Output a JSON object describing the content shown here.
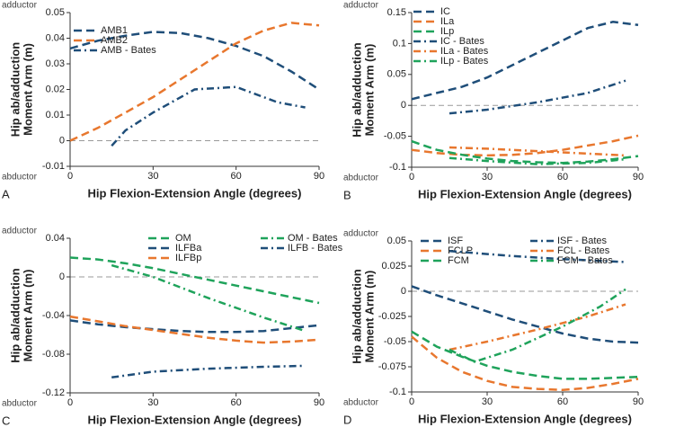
{
  "chart_data": [
    {
      "type": "line",
      "panel": "A",
      "adductor": "adductor",
      "abductor": "abductor",
      "ylabel": [
        "Hip ab/adduction",
        "Moment Arm (m)"
      ],
      "xlabel": "Hip Flexion-Extension Angle (degrees)",
      "xlim": [
        0,
        90
      ],
      "xticks": [
        0,
        30,
        60,
        90
      ],
      "ylim": [
        -0.01,
        0.05
      ],
      "yticks": [
        -0.01,
        0,
        0.01,
        0.02,
        0.03,
        0.04,
        0.05
      ],
      "legend_columns": 1,
      "series": [
        {
          "name": "AMB1",
          "color": "#1f4e79",
          "dash": "dashed",
          "x": [
            0,
            10,
            20,
            30,
            40,
            50,
            60,
            70,
            80,
            90
          ],
          "values": [
            0.036,
            0.039,
            0.041,
            0.0425,
            0.042,
            0.04,
            0.037,
            0.033,
            0.027,
            0.02
          ]
        },
        {
          "name": "AMB2",
          "color": "#e8772e",
          "dash": "dashed",
          "x": [
            0,
            10,
            20,
            30,
            40,
            50,
            60,
            70,
            80,
            90
          ],
          "values": [
            0,
            0.005,
            0.011,
            0.017,
            0.024,
            0.031,
            0.038,
            0.043,
            0.046,
            0.045
          ]
        },
        {
          "name": "AMB - Bates",
          "color": "#1f4e79",
          "dash": "dashdot",
          "x": [
            15,
            20,
            30,
            45,
            60,
            75,
            85
          ],
          "values": [
            -0.002,
            0.004,
            0.011,
            0.02,
            0.021,
            0.015,
            0.013
          ]
        }
      ]
    },
    {
      "type": "line",
      "panel": "B",
      "adductor": "adductor",
      "abductor": "abductor",
      "ylabel": [
        "Hip ab/adduction",
        "Moment Arm (m)"
      ],
      "xlabel": "Hip Flexion-Extension Angle (degrees)",
      "xlim": [
        0,
        90
      ],
      "xticks": [
        0,
        30,
        60,
        90
      ],
      "ylim": [
        -0.1,
        0.15
      ],
      "yticks": [
        -0.1,
        -0.05,
        0,
        0.05,
        0.1,
        0.15
      ],
      "legend_columns": 1,
      "series": [
        {
          "name": "IC",
          "color": "#1f4e79",
          "dash": "dashed",
          "x": [
            0,
            10,
            20,
            30,
            40,
            50,
            60,
            70,
            80,
            90
          ],
          "values": [
            0.01,
            0.02,
            0.03,
            0.045,
            0.065,
            0.085,
            0.105,
            0.125,
            0.135,
            0.13
          ]
        },
        {
          "name": "ILa",
          "color": "#e8772e",
          "dash": "dashed",
          "x": [
            0,
            10,
            20,
            30,
            40,
            50,
            60,
            70,
            80,
            90
          ],
          "values": [
            -0.072,
            -0.077,
            -0.08,
            -0.081,
            -0.08,
            -0.077,
            -0.072,
            -0.065,
            -0.058,
            -0.049
          ]
        },
        {
          "name": "ILp",
          "color": "#1fa35b",
          "dash": "dashed",
          "x": [
            0,
            10,
            20,
            30,
            40,
            50,
            60,
            70,
            80,
            90
          ],
          "values": [
            -0.058,
            -0.072,
            -0.08,
            -0.086,
            -0.09,
            -0.092,
            -0.093,
            -0.091,
            -0.087,
            -0.082
          ]
        },
        {
          "name": "IC - Bates",
          "color": "#1f4e79",
          "dash": "dashdot",
          "x": [
            15,
            30,
            50,
            70,
            85
          ],
          "values": [
            -0.013,
            -0.007,
            0.005,
            0.02,
            0.04
          ]
        },
        {
          "name": "ILa - Bates",
          "color": "#e8772e",
          "dash": "dashdot",
          "x": [
            15,
            30,
            50,
            70,
            85
          ],
          "values": [
            -0.068,
            -0.07,
            -0.074,
            -0.078,
            -0.081
          ]
        },
        {
          "name": "ILp - Bates",
          "color": "#1fa35b",
          "dash": "dashdot",
          "x": [
            15,
            30,
            50,
            70,
            85
          ],
          "values": [
            -0.085,
            -0.09,
            -0.095,
            -0.093,
            -0.087
          ]
        }
      ]
    },
    {
      "type": "line",
      "panel": "C",
      "adductor": "adductor",
      "abductor": "abductor",
      "ylabel": [
        "Hip ab/adduction",
        "Moment Arm (m)"
      ],
      "xlabel": "Hip Flexion-Extension Angle (degrees)",
      "xlim": [
        0,
        90
      ],
      "xticks": [
        0,
        30,
        60,
        90
      ],
      "ylim": [
        -0.12,
        0.04
      ],
      "yticks": [
        -0.12,
        -0.08,
        -0.04,
        0,
        0.04
      ],
      "legend_columns": 2,
      "series": [
        {
          "name": "OM",
          "color": "#1fa35b",
          "dash": "dashed",
          "x": [
            0,
            10,
            20,
            30,
            40,
            50,
            60,
            70,
            80,
            90
          ],
          "values": [
            0.02,
            0.018,
            0.014,
            0.009,
            0.003,
            -0.003,
            -0.009,
            -0.015,
            -0.021,
            -0.027
          ]
        },
        {
          "name": "ILFBa",
          "color": "#1f4e79",
          "dash": "dashed",
          "x": [
            0,
            10,
            20,
            30,
            40,
            50,
            60,
            70,
            80,
            90
          ],
          "values": [
            -0.045,
            -0.049,
            -0.052,
            -0.054,
            -0.056,
            -0.057,
            -0.057,
            -0.056,
            -0.053,
            -0.05
          ]
        },
        {
          "name": "ILFBp",
          "color": "#e8772e",
          "dash": "dashed",
          "x": [
            0,
            10,
            20,
            30,
            40,
            50,
            60,
            70,
            80,
            90
          ],
          "values": [
            -0.041,
            -0.046,
            -0.051,
            -0.055,
            -0.059,
            -0.063,
            -0.066,
            -0.068,
            -0.067,
            -0.065
          ]
        },
        {
          "name": "OM - Bates",
          "color": "#1fa35b",
          "dash": "dashdot",
          "x": [
            15,
            30,
            50,
            70,
            85
          ],
          "values": [
            0.012,
            0,
            -0.022,
            -0.042,
            -0.056
          ]
        },
        {
          "name": "ILFB - Bates",
          "color": "#1f4e79",
          "dash": "dashdot",
          "x": [
            15,
            30,
            50,
            70,
            85
          ],
          "values": [
            -0.104,
            -0.098,
            -0.095,
            -0.093,
            -0.092
          ]
        }
      ]
    },
    {
      "type": "line",
      "panel": "D",
      "adductor": "adductor",
      "abductor": "abductor",
      "ylabel": [
        "Hip ab/adduction",
        "Moment Arm (m)"
      ],
      "xlabel": "Hip Flexion-Extension Angle (degrees)",
      "xlim": [
        0,
        90
      ],
      "xticks": [
        0,
        30,
        60,
        90
      ],
      "ylim": [
        -0.1,
        0.05
      ],
      "yticks": [
        -0.1,
        -0.075,
        -0.05,
        -0.025,
        0,
        0.025,
        0.05
      ],
      "legend_columns": 2,
      "series": [
        {
          "name": "ISF",
          "color": "#1f4e79",
          "dash": "dashed",
          "x": [
            0,
            10,
            20,
            30,
            40,
            50,
            60,
            70,
            80,
            90
          ],
          "values": [
            0.005,
            -0.004,
            -0.012,
            -0.02,
            -0.028,
            -0.035,
            -0.042,
            -0.047,
            -0.05,
            -0.051
          ]
        },
        {
          "name": "FCLP",
          "color": "#e8772e",
          "dash": "dashed",
          "x": [
            0,
            10,
            20,
            30,
            40,
            50,
            60,
            70,
            80,
            90
          ],
          "values": [
            -0.045,
            -0.066,
            -0.08,
            -0.089,
            -0.095,
            -0.097,
            -0.098,
            -0.096,
            -0.092,
            -0.087
          ]
        },
        {
          "name": "FCM",
          "color": "#1fa35b",
          "dash": "dashed",
          "x": [
            0,
            10,
            20,
            30,
            40,
            50,
            60,
            70,
            80,
            90
          ],
          "values": [
            -0.04,
            -0.055,
            -0.065,
            -0.074,
            -0.08,
            -0.084,
            -0.087,
            -0.087,
            -0.086,
            -0.085
          ]
        },
        {
          "name": "ISF - Bates",
          "color": "#1f4e79",
          "dash": "dashdot",
          "x": [
            15,
            40,
            60,
            85
          ],
          "values": [
            0.04,
            0.035,
            0.032,
            0.029
          ]
        },
        {
          "name": "FCL - Bates",
          "color": "#e8772e",
          "dash": "dashdot",
          "x": [
            15,
            30,
            50,
            70,
            85
          ],
          "values": [
            -0.058,
            -0.05,
            -0.038,
            -0.025,
            -0.013
          ]
        },
        {
          "name": "FCM - Bates",
          "color": "#1fa35b",
          "dash": "dashdot",
          "x": [
            15,
            25,
            40,
            60,
            75,
            85
          ],
          "values": [
            -0.058,
            -0.07,
            -0.058,
            -0.035,
            -0.015,
            0.002
          ]
        }
      ]
    }
  ]
}
